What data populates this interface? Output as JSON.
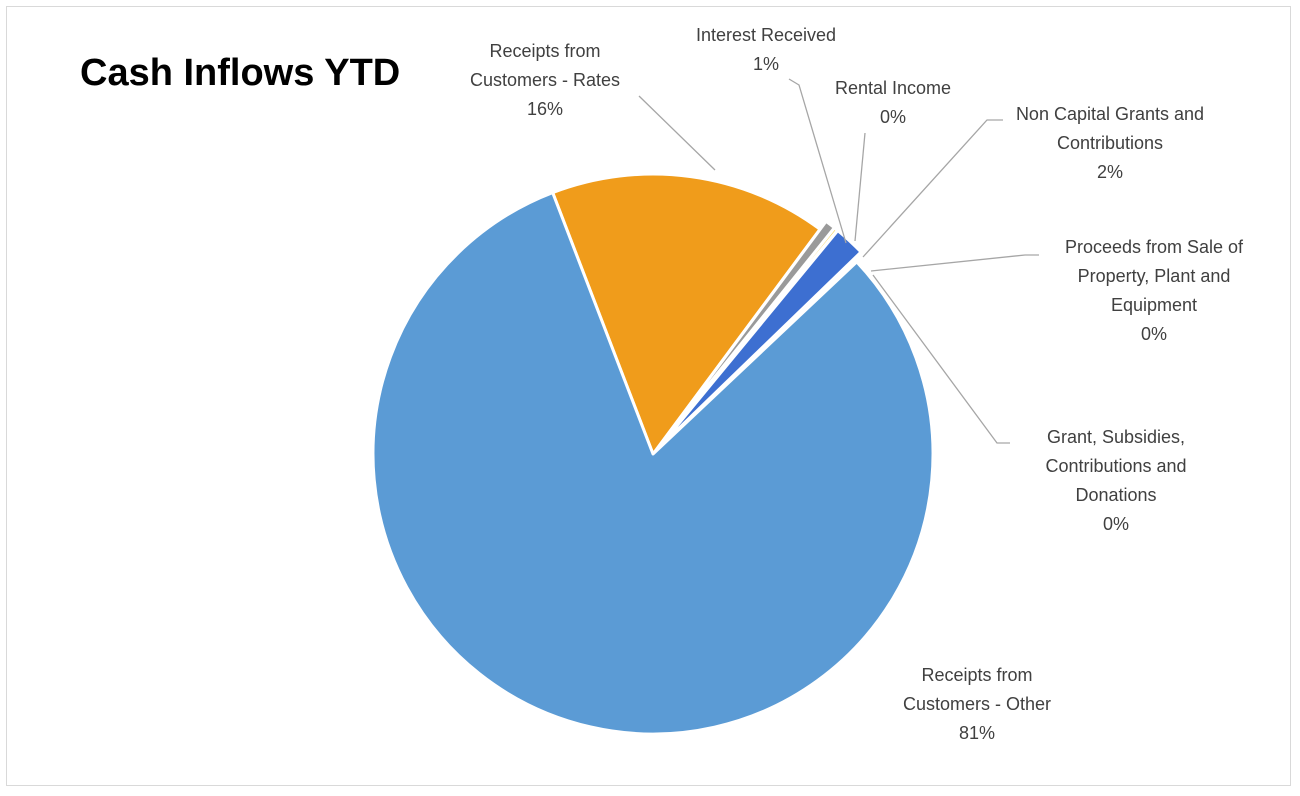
{
  "chart_data": {
    "type": "pie",
    "title": "Cash Inflows YTD",
    "slices": [
      {
        "label": "Receipts from Customers - Rates",
        "label_lines": [
          "Receipts from",
          "Customers - Rates",
          "16%"
        ],
        "value": 16,
        "percent_label": "16%",
        "color": "#f09c1b"
      },
      {
        "label": "Interest Received",
        "label_lines": [
          "Interest Received",
          "1%"
        ],
        "value": 0.6,
        "percent_label": "1%",
        "color": "#9a9a9a"
      },
      {
        "label": "Rental Income",
        "label_lines": [
          "Rental Income",
          "0%"
        ],
        "value": 0.2,
        "percent_label": "0%",
        "color": "#f2c418"
      },
      {
        "label": "Non Capital Grants and Contributions",
        "label_lines": [
          "Non Capital Grants and",
          "Contributions",
          "2%"
        ],
        "value": 1.8,
        "percent_label": "2%",
        "color": "#3d6fd1"
      },
      {
        "label": "Proceeds from Sale of Property, Plant and Equipment",
        "label_lines": [
          "Proceeds from Sale of",
          "Property, Plant and",
          "Equipment",
          "0%"
        ],
        "value": 0.1,
        "percent_label": "0%",
        "color": "#6fb54c"
      },
      {
        "label": "Grant, Subsidies, Contributions and Donations",
        "label_lines": [
          "Grant, Subsidies,",
          "Contributions and",
          "Donations",
          "0%"
        ],
        "value": 0.1,
        "percent_label": "0%",
        "color": "#264478"
      },
      {
        "label": "Receipts from Customers - Other",
        "label_lines": [
          "Receipts from",
          "Customers - Other",
          "81%"
        ],
        "value": 81.2,
        "percent_label": "81%",
        "color": "#5b9bd5"
      }
    ],
    "start_angle_deg": -21,
    "direction": "clockwise",
    "legend": "none"
  }
}
